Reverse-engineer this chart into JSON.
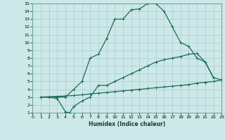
{
  "title": "",
  "xlabel": "Humidex (Indice chaleur)",
  "xlim": [
    0,
    23
  ],
  "ylim": [
    1,
    15
  ],
  "xticks": [
    0,
    1,
    2,
    3,
    4,
    5,
    6,
    7,
    8,
    9,
    10,
    11,
    12,
    13,
    14,
    15,
    16,
    17,
    18,
    19,
    20,
    21,
    22,
    23
  ],
  "yticks": [
    1,
    2,
    3,
    4,
    5,
    6,
    7,
    8,
    9,
    10,
    11,
    12,
    13,
    14,
    15
  ],
  "background_color": "#cce8e8",
  "grid_color": "#aacece",
  "line_color": "#1a6b5a",
  "line1_x": [
    1,
    2,
    3,
    4,
    5,
    6,
    7,
    8,
    9,
    10,
    11,
    12,
    13,
    14,
    15,
    16,
    17,
    18,
    19,
    20,
    21,
    22,
    23
  ],
  "line1_y": [
    3,
    3,
    3,
    3,
    4,
    5,
    8,
    8.5,
    10.5,
    13,
    13,
    14.2,
    14.3,
    15,
    15,
    14,
    12,
    10,
    9.5,
    8,
    7.5,
    5.5,
    5.2
  ],
  "line2_x": [
    1,
    2,
    3,
    4,
    4.5,
    5,
    6,
    7,
    8,
    9,
    10,
    11,
    12,
    13,
    14,
    15,
    16,
    17,
    18,
    19,
    20,
    21,
    22
  ],
  "line2_y": [
    3,
    3,
    2.8,
    1.1,
    1.0,
    1.8,
    2.5,
    3.0,
    4.5,
    4.5,
    5.0,
    5.5,
    6.0,
    6.5,
    7.0,
    7.5,
    7.8,
    8.0,
    8.2,
    8.5,
    8.6,
    7.5,
    5.5
  ],
  "line3_x": [
    1,
    2,
    3,
    4,
    5,
    6,
    7,
    8,
    9,
    10,
    11,
    12,
    13,
    14,
    15,
    16,
    17,
    18,
    19,
    20,
    21,
    22,
    23
  ],
  "line3_y": [
    3.0,
    3.05,
    3.1,
    3.15,
    3.2,
    3.3,
    3.4,
    3.5,
    3.6,
    3.7,
    3.8,
    3.9,
    4.0,
    4.1,
    4.2,
    4.3,
    4.4,
    4.5,
    4.6,
    4.8,
    4.9,
    5.0,
    5.2
  ]
}
